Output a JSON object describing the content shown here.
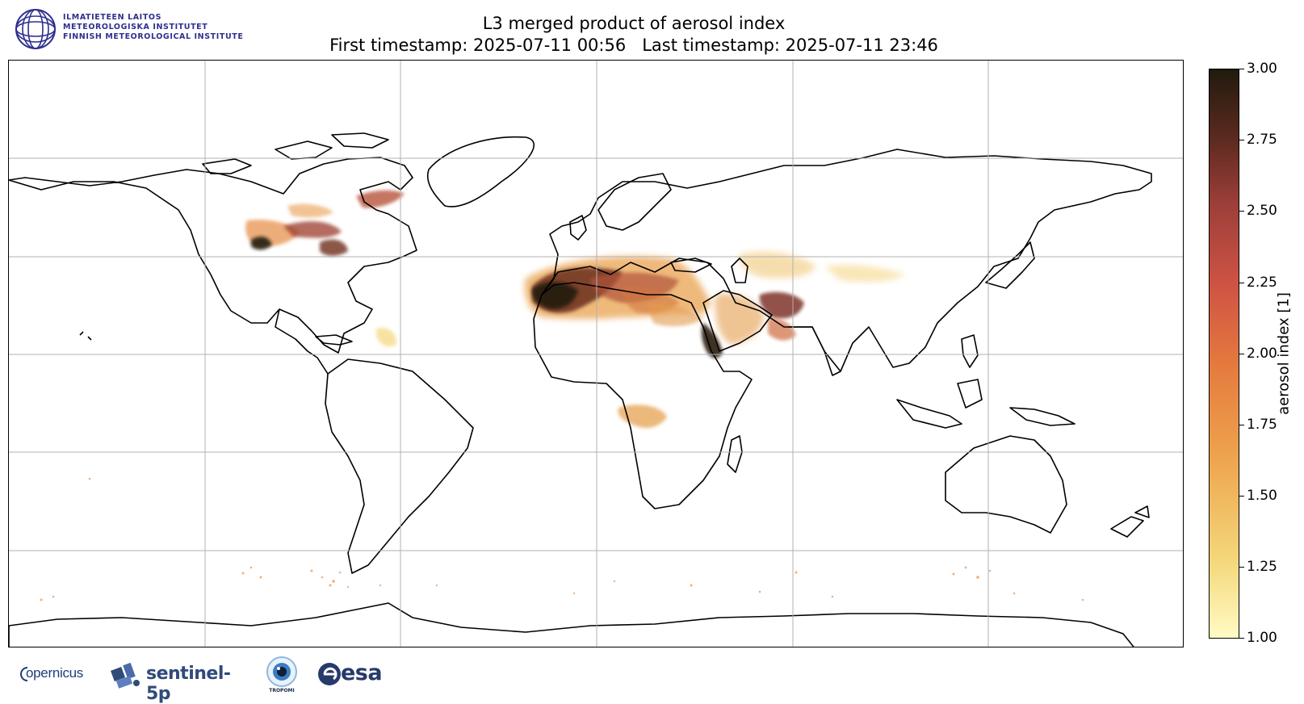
{
  "header": {
    "logo": {
      "lines": [
        "ILMATIETEEN LAITOS",
        "METEOROLOGISKA INSTITUTET",
        "FINNISH METEOROLOGICAL INSTITUTE"
      ],
      "color": "#2f2f8f"
    },
    "title_line1": "L3 merged product of aerosol index",
    "title_line2": "First timestamp: 2025-07-11 00:56   Last timestamp: 2025-07-11 23:46"
  },
  "map": {
    "projection": "plate-carree",
    "extent": {
      "lon": [
        -180,
        180
      ],
      "lat": [
        -90,
        90
      ]
    },
    "gridlines": {
      "lon_step": 60,
      "lat_step": 30,
      "color": "#b0b0b0"
    },
    "coastline_color": "#000000"
  },
  "colorbar": {
    "label": "aerosol index [1]",
    "range": [
      1.0,
      3.0
    ],
    "ticks": [
      "3.00",
      "2.75",
      "2.50",
      "2.25",
      "2.00",
      "1.75",
      "1.50",
      "1.25",
      "1.00"
    ],
    "colormap": [
      "#fffbc4",
      "#f4d679",
      "#eea34d",
      "#e47a3e",
      "#cf5344",
      "#9e3f3a",
      "#5b2a1e",
      "#211a0e"
    ]
  },
  "footer": {
    "copernicus": "opernicus",
    "sentinel": "sentinel-5p",
    "tropomi": "TROPOMI",
    "esa": "esa"
  }
}
